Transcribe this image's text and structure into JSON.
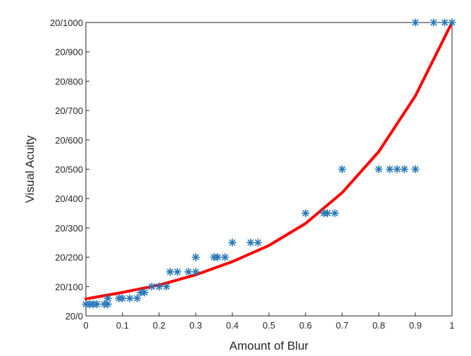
{
  "chart_data": {
    "type": "scatter",
    "xlabel": "Amount of Blur",
    "ylabel": "Visual Acuity",
    "xlim": [
      0,
      1
    ],
    "ylim": [
      0,
      1000
    ],
    "xticks": [
      0,
      0.1,
      0.2,
      0.3,
      0.4,
      0.5,
      0.6,
      0.7,
      0.8,
      0.9,
      1
    ],
    "xtick_labels": [
      "0",
      "0.1",
      "0.2",
      "0.3",
      "0.4",
      "0.5",
      "0.6",
      "0.7",
      "0.8",
      "0.9",
      "1"
    ],
    "yticks": [
      0,
      100,
      200,
      300,
      400,
      500,
      600,
      700,
      800,
      900,
      1000
    ],
    "ytick_labels": [
      "20/0",
      "20/100",
      "20/200",
      "20/300",
      "20/400",
      "20/500",
      "20/600",
      "20/700",
      "20/800",
      "20/900",
      "20/1000"
    ],
    "grid": false,
    "series": [
      {
        "marker": "asterisk",
        "color": "#2878b8",
        "points": [
          [
            0,
            40
          ],
          [
            0.01,
            40
          ],
          [
            0.02,
            40
          ],
          [
            0.03,
            40
          ],
          [
            0.05,
            40
          ],
          [
            0.06,
            40
          ],
          [
            0.06,
            60
          ],
          [
            0.09,
            60
          ],
          [
            0.1,
            60
          ],
          [
            0.12,
            60
          ],
          [
            0.14,
            60
          ],
          [
            0.15,
            80
          ],
          [
            0.16,
            80
          ],
          [
            0.18,
            100
          ],
          [
            0.2,
            100
          ],
          [
            0.22,
            100
          ],
          [
            0.23,
            150
          ],
          [
            0.25,
            150
          ],
          [
            0.28,
            150
          ],
          [
            0.3,
            150
          ],
          [
            0.3,
            200
          ],
          [
            0.35,
            200
          ],
          [
            0.36,
            200
          ],
          [
            0.38,
            200
          ],
          [
            0.4,
            250
          ],
          [
            0.45,
            250
          ],
          [
            0.47,
            250
          ],
          [
            0.6,
            350
          ],
          [
            0.65,
            350
          ],
          [
            0.66,
            350
          ],
          [
            0.68,
            350
          ],
          [
            0.7,
            500
          ],
          [
            0.8,
            500
          ],
          [
            0.83,
            500
          ],
          [
            0.85,
            500
          ],
          [
            0.87,
            500
          ],
          [
            0.9,
            500
          ],
          [
            0.9,
            1000
          ],
          [
            0.95,
            1000
          ],
          [
            0.98,
            1000
          ],
          [
            1.0,
            1000
          ]
        ]
      },
      {
        "marker": "none",
        "line": "solid",
        "color": "#ff0000",
        "points": [
          [
            0,
            58
          ],
          [
            0.1,
            80
          ],
          [
            0.2,
            105
          ],
          [
            0.3,
            140
          ],
          [
            0.4,
            185
          ],
          [
            0.5,
            240
          ],
          [
            0.6,
            315
          ],
          [
            0.7,
            420
          ],
          [
            0.8,
            560
          ],
          [
            0.9,
            750
          ],
          [
            1.0,
            1000
          ]
        ]
      }
    ]
  }
}
